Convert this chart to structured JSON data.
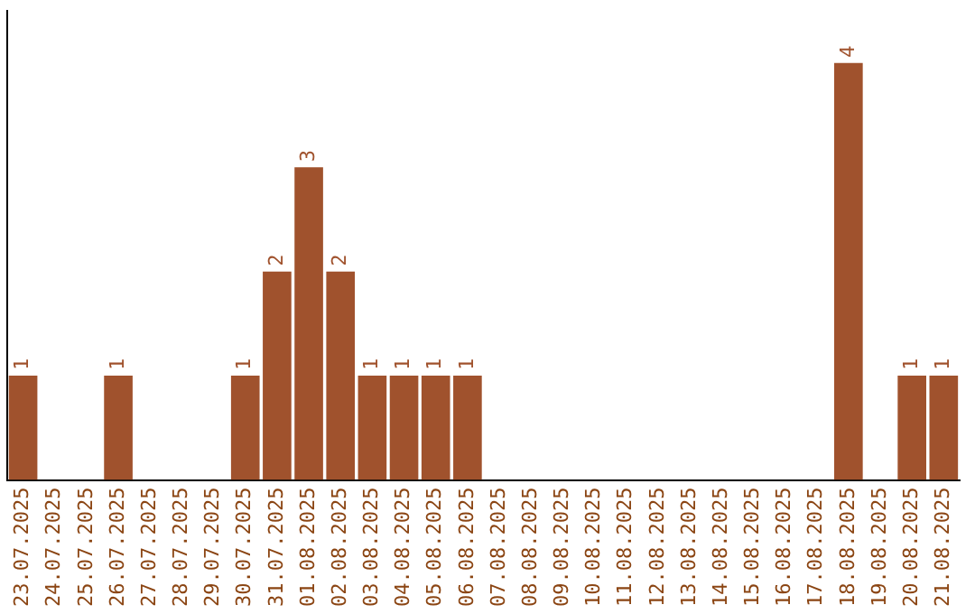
{
  "chart_data": {
    "type": "bar",
    "categories": [
      "23.07.2025",
      "24.07.2025",
      "25.07.2025",
      "26.07.2025",
      "27.07.2025",
      "28.07.2025",
      "29.07.2025",
      "30.07.2025",
      "31.07.2025",
      "01.08.2025",
      "02.08.2025",
      "03.08.2025",
      "04.08.2025",
      "05.08.2025",
      "06.08.2025",
      "07.08.2025",
      "08.08.2025",
      "09.08.2025",
      "10.08.2025",
      "11.08.2025",
      "12.08.2025",
      "13.08.2025",
      "14.08.2025",
      "15.08.2025",
      "16.08.2025",
      "17.08.2025",
      "18.08.2025",
      "19.08.2025",
      "20.08.2025",
      "21.08.2025"
    ],
    "values": [
      1,
      0,
      0,
      1,
      0,
      0,
      0,
      1,
      2,
      3,
      2,
      1,
      1,
      1,
      1,
      0,
      0,
      0,
      0,
      0,
      0,
      0,
      0,
      0,
      0,
      0,
      4,
      0,
      1,
      1
    ],
    "value_labels": [
      "1",
      null,
      null,
      "1",
      null,
      null,
      null,
      "1",
      "2",
      "3",
      "2",
      "1",
      "1",
      "1",
      "1",
      null,
      null,
      null,
      null,
      null,
      null,
      null,
      null,
      null,
      null,
      null,
      "4",
      null,
      "1",
      "1"
    ],
    "color": "#a0522d",
    "grid": false,
    "legend": false,
    "tick_labels": "x"
  }
}
